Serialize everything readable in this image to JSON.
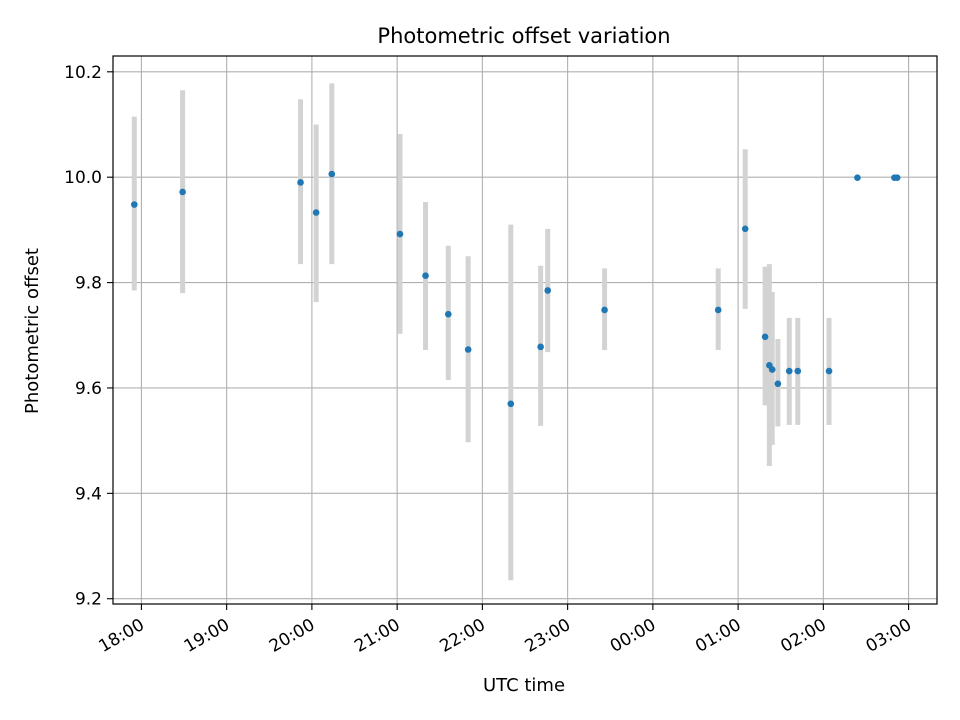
{
  "chart_data": {
    "type": "scatter",
    "title": "Photometric offset variation",
    "xlabel": "UTC time",
    "ylabel": "Photometric offset",
    "x_axis_kind": "time",
    "xlim": [
      "17:40",
      "03:20"
    ],
    "ylim": [
      9.19,
      10.23
    ],
    "grid": true,
    "yticks": [
      9.2,
      9.4,
      9.6,
      9.8,
      10.0,
      10.2
    ],
    "ytick_labels": [
      "9.2",
      "9.4",
      "9.6",
      "9.8",
      "10.0",
      "10.2"
    ],
    "xticks": [
      "18:00",
      "19:00",
      "20:00",
      "21:00",
      "22:00",
      "23:00",
      "00:00",
      "01:00",
      "02:00",
      "03:00"
    ],
    "colors": {
      "points": "#1f77b4",
      "errorbars": "#d3d3d3",
      "grid": "#b0b0b0"
    },
    "series": [
      {
        "points": [
          {
            "x": "17:55",
            "y": 9.948,
            "ylo": 9.785,
            "yhi": 10.115
          },
          {
            "x": "18:29",
            "y": 9.972,
            "ylo": 9.78,
            "yhi": 10.165
          },
          {
            "x": "19:52",
            "y": 9.99,
            "ylo": 9.835,
            "yhi": 10.148
          },
          {
            "x": "20:03",
            "y": 9.933,
            "ylo": 9.763,
            "yhi": 10.1
          },
          {
            "x": "20:14",
            "y": 10.006,
            "ylo": 9.835,
            "yhi": 10.178
          },
          {
            "x": "21:02",
            "y": 9.892,
            "ylo": 9.703,
            "yhi": 10.082
          },
          {
            "x": "21:20",
            "y": 9.813,
            "ylo": 9.672,
            "yhi": 9.953
          },
          {
            "x": "21:36",
            "y": 9.74,
            "ylo": 9.615,
            "yhi": 9.87
          },
          {
            "x": "21:50",
            "y": 9.673,
            "ylo": 9.497,
            "yhi": 9.85
          },
          {
            "x": "22:20",
            "y": 9.57,
            "ylo": 9.235,
            "yhi": 9.91
          },
          {
            "x": "22:41",
            "y": 9.678,
            "ylo": 9.528,
            "yhi": 9.832
          },
          {
            "x": "22:46",
            "y": 9.785,
            "ylo": 9.668,
            "yhi": 9.902
          },
          {
            "x": "23:26",
            "y": 9.748,
            "ylo": 9.672,
            "yhi": 9.827
          },
          {
            "x": "00:46",
            "y": 9.748,
            "ylo": 9.672,
            "yhi": 9.827
          },
          {
            "x": "01:05",
            "y": 9.902,
            "ylo": 9.75,
            "yhi": 10.053
          },
          {
            "x": "01:19",
            "y": 9.697,
            "ylo": 9.567,
            "yhi": 9.83
          },
          {
            "x": "01:22",
            "y": 9.643,
            "ylo": 9.452,
            "yhi": 9.835
          },
          {
            "x": "01:24",
            "y": 9.635,
            "ylo": 9.492,
            "yhi": 9.782
          },
          {
            "x": "01:28",
            "y": 9.608,
            "ylo": 9.527,
            "yhi": 9.693
          },
          {
            "x": "01:36",
            "y": 9.632,
            "ylo": 9.53,
            "yhi": 9.733
          },
          {
            "x": "01:42",
            "y": 9.632,
            "ylo": 9.53,
            "yhi": 9.733
          },
          {
            "x": "02:04",
            "y": 9.632,
            "ylo": 9.53,
            "yhi": 9.733
          },
          {
            "x": "02:24",
            "y": 9.999,
            "ylo": 9.999,
            "yhi": 9.999
          },
          {
            "x": "02:50",
            "y": 9.999,
            "ylo": 9.999,
            "yhi": 9.999
          },
          {
            "x": "02:52",
            "y": 9.999,
            "ylo": 9.999,
            "yhi": 9.999
          }
        ]
      }
    ]
  }
}
